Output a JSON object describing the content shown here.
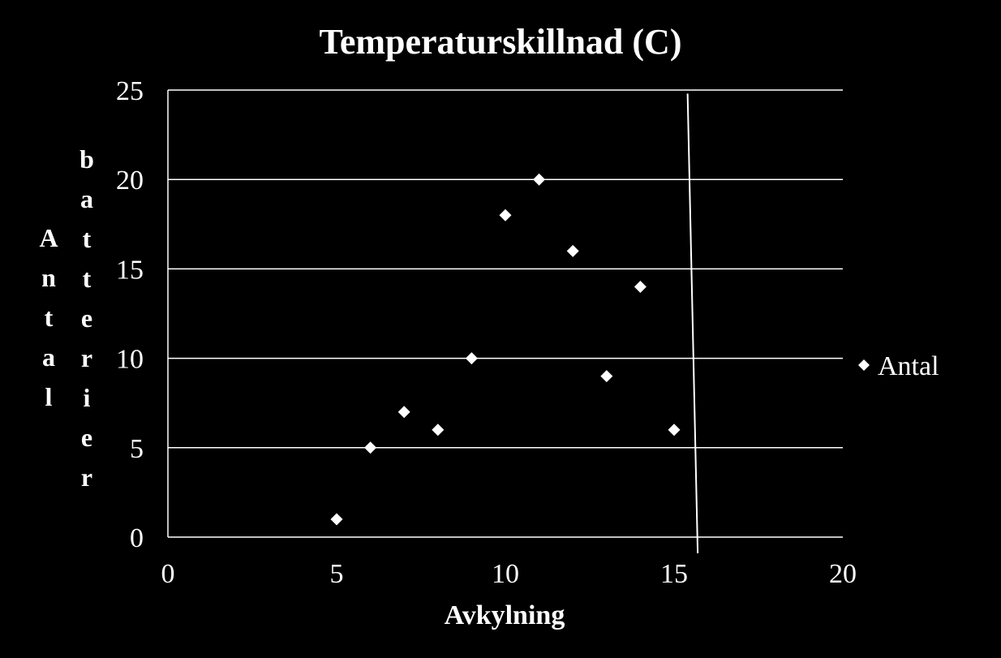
{
  "chart_data": {
    "type": "scatter",
    "title": "Temperaturskillnad (C)",
    "xlabel": "Avkylning",
    "ylabel_lines": [
      "Antal",
      "batterier"
    ],
    "xlim": [
      0,
      20
    ],
    "ylim": [
      0,
      25
    ],
    "x_ticks": [
      0,
      5,
      10,
      15,
      20
    ],
    "y_ticks": [
      0,
      5,
      10,
      15,
      20,
      25
    ],
    "grid": "horizontal",
    "legend_position": "right",
    "series": [
      {
        "name": "Antal",
        "x": [
          5,
          6,
          7,
          8,
          9,
          10,
          11,
          12,
          13,
          14,
          15
        ],
        "y": [
          1,
          5,
          7,
          6,
          10,
          18,
          20,
          16,
          9,
          14,
          6
        ],
        "marker": "diamond"
      }
    ],
    "reference_line": {
      "x_start": 15.4,
      "y_start": 24.8,
      "x_end": 15.7,
      "y_end": -0.9
    },
    "colors": {
      "background": "#000000",
      "foreground": "#ffffff"
    }
  }
}
